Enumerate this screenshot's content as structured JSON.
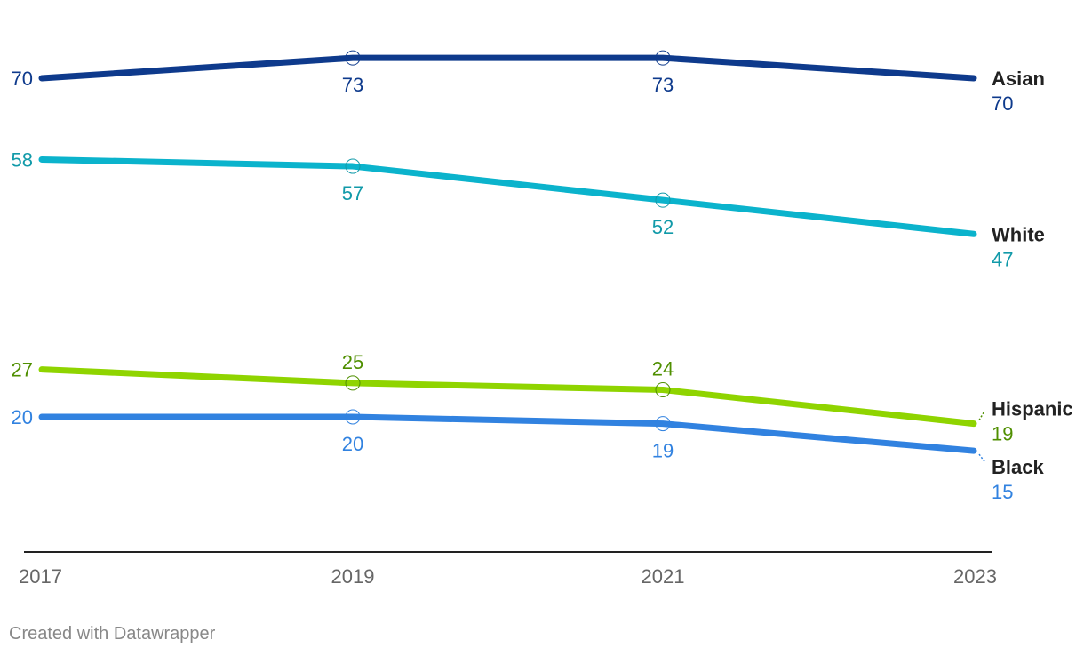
{
  "chart_data": {
    "type": "line",
    "x": [
      "2017",
      "2019",
      "2021",
      "2023"
    ],
    "ylim": [
      0,
      80
    ],
    "grid": false,
    "series": [
      {
        "name": "Asian",
        "color": "#0e3a8c",
        "label_color": "#0e3a8c",
        "values": [
          70,
          73,
          73,
          70
        ]
      },
      {
        "name": "White",
        "color": "#0bb3cc",
        "label_color": "#119aa9",
        "values": [
          58,
          57,
          52,
          47
        ]
      },
      {
        "name": "Hispanic",
        "color": "#8fd400",
        "label_color": "#4f8f00",
        "values": [
          27,
          25,
          24,
          19
        ]
      },
      {
        "name": "Black",
        "color": "#3182e0",
        "label_color": "#3182e0",
        "values": [
          20,
          20,
          19,
          15
        ]
      }
    ]
  },
  "credit": "Created with Datawrapper"
}
